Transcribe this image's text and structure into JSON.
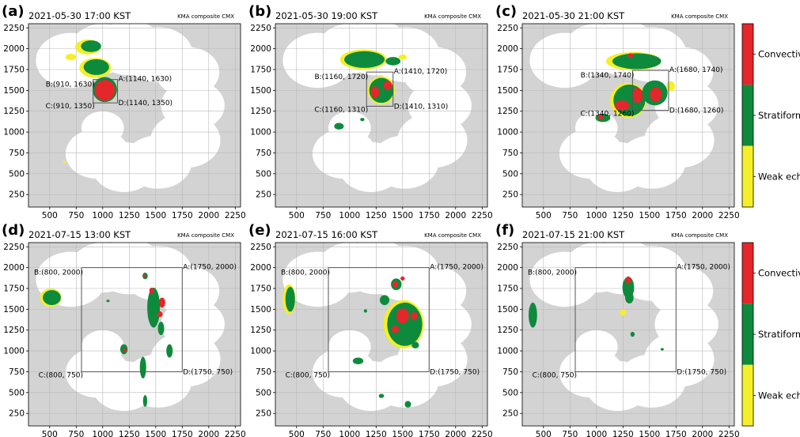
{
  "figure": {
    "colorbars": [
      {
        "labels": [
          "Convective",
          "Stratiform",
          "Weak echo"
        ]
      },
      {
        "labels": [
          "Convective",
          "Stratiform",
          "Weak echo"
        ]
      }
    ]
  },
  "colors": {
    "convective": "#e5262a",
    "stratiform": "#0e8a3c",
    "weak_echo": "#f4ef28",
    "outside_coverage": "#d3d3d3",
    "coverage": "#ffffff",
    "box": "#555555"
  },
  "chart_data": [
    {
      "type": "heatmap",
      "panel_label": "(a)",
      "title": "2021-05-30 17:00 KST",
      "source": "KMA composite CMX",
      "xlim": [
        300,
        2300
      ],
      "ylim": [
        100,
        2300
      ],
      "xticks": [
        "500",
        "750",
        "1000",
        "1250",
        "1500",
        "1750",
        "2000",
        "2250"
      ],
      "yticks": [
        "250",
        "500",
        "750",
        "1000",
        "1250",
        "1500",
        "1750",
        "2000",
        "2250"
      ],
      "grid": true,
      "box": {
        "x1": 910,
        "x2": 1140,
        "y1": 1350,
        "y2": 1630
      },
      "corner_labels": {
        "A": "A:(1140, 1630)",
        "B": "B:(910, 1630)",
        "C": "C:(910, 1350)",
        "D": "D:(1140, 1350)"
      }
    },
    {
      "type": "heatmap",
      "panel_label": "(b)",
      "title": "2021-05-30 19:00 KST",
      "source": "KMA composite CMX",
      "xlim": [
        300,
        2300
      ],
      "ylim": [
        100,
        2300
      ],
      "xticks": [
        "500",
        "750",
        "1000",
        "1250",
        "1500",
        "1750",
        "2000",
        "2250"
      ],
      "yticks": [
        "250",
        "500",
        "750",
        "1000",
        "1250",
        "1500",
        "1750",
        "2000",
        "2250"
      ],
      "grid": true,
      "box": {
        "x1": 1160,
        "x2": 1410,
        "y1": 1310,
        "y2": 1720
      },
      "corner_labels": {
        "A": "A:(1410, 1720)",
        "B": "B:(1160, 1720)",
        "C": "C:(1160, 1310)",
        "D": "D:(1410, 1310)"
      }
    },
    {
      "type": "heatmap",
      "panel_label": "(c)",
      "title": "2021-05-30 21:00 KST",
      "source": "KMA composite CMX",
      "xlim": [
        300,
        2300
      ],
      "ylim": [
        100,
        2300
      ],
      "xticks": [
        "500",
        "750",
        "1000",
        "1250",
        "1500",
        "1750",
        "2000",
        "2250"
      ],
      "yticks": [
        "250",
        "500",
        "750",
        "1000",
        "1250",
        "1500",
        "1750",
        "2000",
        "2250"
      ],
      "grid": true,
      "box": {
        "x1": 1340,
        "x2": 1680,
        "y1": 1260,
        "y2": 1740
      },
      "corner_labels": {
        "A": "A:(1680, 1740)",
        "B": "B:(1340, 1740)",
        "C": "C:(1340, 1260)",
        "D": "D:(1680, 1260)"
      }
    },
    {
      "type": "heatmap",
      "panel_label": "(d)",
      "title": "2021-07-15 13:00 KST",
      "source": "KMA composite CMX",
      "xlim": [
        300,
        2300
      ],
      "ylim": [
        100,
        2300
      ],
      "xticks": [
        "500",
        "750",
        "1000",
        "1250",
        "1500",
        "1750",
        "2000",
        "2250"
      ],
      "yticks": [
        "250",
        "500",
        "750",
        "1000",
        "1250",
        "1500",
        "1750",
        "2000",
        "2250"
      ],
      "grid": true,
      "box": {
        "x1": 800,
        "x2": 1750,
        "y1": 750,
        "y2": 2000
      },
      "corner_labels": {
        "A": "A:(1750, 2000)",
        "B": "B:(800, 2000)",
        "C": "C:(800, 750)",
        "D": "D:(1750, 750)"
      }
    },
    {
      "type": "heatmap",
      "panel_label": "(e)",
      "title": "2021-07-15 16:00 KST",
      "source": "KMA composite CMX",
      "xlim": [
        300,
        2300
      ],
      "ylim": [
        100,
        2300
      ],
      "xticks": [
        "500",
        "750",
        "1000",
        "1250",
        "1500",
        "1750",
        "2000",
        "2250"
      ],
      "yticks": [
        "250",
        "500",
        "750",
        "1000",
        "1250",
        "1500",
        "1750",
        "2000",
        "2250"
      ],
      "grid": true,
      "box": {
        "x1": 800,
        "x2": 1750,
        "y1": 750,
        "y2": 2000
      },
      "corner_labels": {
        "A": "A:(1750, 2000)",
        "B": "B:(800, 2000)",
        "C": "C:(800, 750)",
        "D": "D:(1750, 750)"
      }
    },
    {
      "type": "heatmap",
      "panel_label": "(f)",
      "title": "2021-07-15 21:00 KST",
      "source": "KMA composite CMX",
      "xlim": [
        300,
        2300
      ],
      "ylim": [
        100,
        2300
      ],
      "xticks": [
        "500",
        "750",
        "1000",
        "1250",
        "1500",
        "1750",
        "2000",
        "2250"
      ],
      "yticks": [
        "250",
        "500",
        "750",
        "1000",
        "1250",
        "1500",
        "1750",
        "2000",
        "2250"
      ],
      "grid": true,
      "box": {
        "x1": 800,
        "x2": 1750,
        "y1": 750,
        "y2": 2000
      },
      "corner_labels": {
        "A": "A:(1750, 2000)",
        "B": "B:(800, 2000)",
        "C": "C:(800, 750)",
        "D": "D:(1750, 750)"
      }
    }
  ]
}
